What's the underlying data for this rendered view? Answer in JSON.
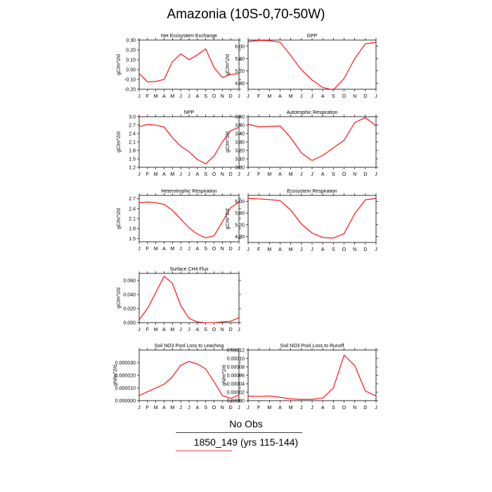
{
  "title": "Amazonia (10S-0,70-50W)",
  "footer": {
    "obs_label": "No Obs",
    "run_label": "1850_149 (yrs 115-144)",
    "obs_rule_color": "#444444",
    "run_rule_color": "#e8433f"
  },
  "line_color": "#ff0000",
  "chart_data": [
    {
      "type": "line",
      "title": "Net Ecosystem Exchange",
      "ylabel": "gC/m^2/d",
      "categories": [
        "J",
        "F",
        "M",
        "A",
        "M",
        "J",
        "J",
        "A",
        "S",
        "O",
        "N",
        "D",
        "J"
      ],
      "ylim": [
        -0.2,
        0.3
      ],
      "yticks": [
        -0.2,
        -0.1,
        0.0,
        0.1,
        0.2,
        0.3
      ],
      "ytick_labels": [
        "-0.20",
        "-0.10",
        "0.00",
        "0.10",
        "0.20",
        "0.30"
      ],
      "values": [
        -0.04,
        -0.125,
        -0.12,
        -0.1,
        0.08,
        0.16,
        0.1,
        0.15,
        0.21,
        0.02,
        -0.08,
        -0.05,
        -0.04
      ]
    },
    {
      "type": "line",
      "title": "GPP",
      "ylabel": "gC/m^2/d",
      "categories": [
        "J",
        "F",
        "M",
        "A",
        "M",
        "J",
        "J",
        "A",
        "S",
        "O",
        "N",
        "D",
        "J"
      ],
      "ylim": [
        4.6,
        6.2
      ],
      "yticks": [
        4.8,
        5.2,
        5.6,
        6.0
      ],
      "ytick_labels": [
        "4.80",
        "5.20",
        "5.60",
        "6.00"
      ],
      "values": [
        6.15,
        6.19,
        6.18,
        6.13,
        5.7,
        5.23,
        4.9,
        4.66,
        4.58,
        4.95,
        5.6,
        6.08,
        6.13
      ]
    },
    {
      "type": "line",
      "title": "NPP",
      "ylabel": "gC/m^2/d",
      "categories": [
        "J",
        "F",
        "M",
        "A",
        "M",
        "J",
        "J",
        "A",
        "S",
        "O",
        "N",
        "D",
        "J"
      ],
      "ylim": [
        1.2,
        3.0
      ],
      "yticks": [
        1.2,
        1.5,
        1.8,
        2.1,
        2.4,
        2.7,
        3.0
      ],
      "ytick_labels": [
        "1.2",
        "1.5",
        "1.8",
        "2.1",
        "2.4",
        "2.7",
        "3.0"
      ],
      "values": [
        2.65,
        2.72,
        2.7,
        2.63,
        2.25,
        1.95,
        1.75,
        1.48,
        1.32,
        1.6,
        2.1,
        2.5,
        2.62
      ]
    },
    {
      "type": "line",
      "title": "Autotrophic Respiration",
      "ylabel": "gC/m^2/d",
      "categories": [
        "J",
        "F",
        "M",
        "A",
        "M",
        "J",
        "J",
        "A",
        "S",
        "O",
        "N",
        "D",
        "J"
      ],
      "ylim": [
        3.0,
        3.6
      ],
      "yticks": [
        3.0,
        3.1,
        3.2,
        3.3,
        3.4,
        3.5,
        3.6
      ],
      "ytick_labels": [
        "3.00",
        "3.10",
        "3.20",
        "3.30",
        "3.40",
        "3.50",
        "3.60"
      ],
      "values": [
        3.51,
        3.48,
        3.485,
        3.49,
        3.35,
        3.17,
        3.08,
        3.14,
        3.23,
        3.32,
        3.53,
        3.59,
        3.49
      ]
    },
    {
      "type": "line",
      "title": "Heterotrophic Respiration",
      "ylabel": "gC/m^2/d",
      "categories": [
        "J",
        "F",
        "M",
        "A",
        "M",
        "J",
        "J",
        "A",
        "S",
        "O",
        "N",
        "D",
        "J"
      ],
      "ylim": [
        1.4,
        2.8
      ],
      "yticks": [
        1.5,
        1.8,
        2.1,
        2.4,
        2.7
      ],
      "ytick_labels": [
        "1.5",
        "1.8",
        "2.1",
        "2.4",
        "2.7"
      ],
      "values": [
        2.58,
        2.6,
        2.58,
        2.53,
        2.35,
        2.08,
        1.82,
        1.63,
        1.52,
        1.58,
        2.0,
        2.43,
        2.6
      ]
    },
    {
      "type": "line",
      "title": "Ecosystem Respiration",
      "ylabel": "gC/m^2/d",
      "categories": [
        "J",
        "F",
        "M",
        "A",
        "M",
        "J",
        "J",
        "A",
        "S",
        "O",
        "N",
        "D",
        "J"
      ],
      "ylim": [
        4.6,
        6.2
      ],
      "yticks": [
        4.8,
        5.2,
        5.6,
        6.0
      ],
      "ytick_labels": [
        "4.80",
        "5.20",
        "5.60",
        "6.00"
      ],
      "values": [
        6.1,
        6.08,
        6.06,
        6.02,
        5.7,
        5.23,
        4.92,
        4.77,
        4.75,
        4.9,
        5.58,
        6.05,
        6.1
      ]
    },
    {
      "type": "line",
      "title": "Surface CH4 Flux",
      "ylabel": "gC/m^2/d",
      "categories": [
        "J",
        "F",
        "M",
        "A",
        "M",
        "J",
        "J",
        "A",
        "S",
        "O",
        "N",
        "D",
        "J"
      ],
      "ylim": [
        0.0,
        0.07
      ],
      "yticks": [
        0.0,
        0.02,
        0.04,
        0.06
      ],
      "ytick_labels": [
        "0.000",
        "0.020",
        "0.040",
        "0.060"
      ],
      "values": [
        0.004,
        0.02,
        0.043,
        0.066,
        0.056,
        0.024,
        0.006,
        0.001,
        0.0,
        0.0,
        0.001,
        0.002,
        0.007
      ]
    },
    {
      "type": "line",
      "title": "Soil NO3 Pool Loss to Leaching",
      "ylabel": "gN/m^2/d",
      "categories": [
        "J",
        "F",
        "M",
        "A",
        "M",
        "J",
        "J",
        "A",
        "S",
        "O",
        "N",
        "D",
        "J"
      ],
      "ylim": [
        0.0,
        4e-05
      ],
      "yticks": [
        0.0,
        1e-05,
        2e-05,
        3e-05
      ],
      "ytick_labels": [
        "0.000000",
        "0.000010",
        "0.000020",
        "0.000030"
      ],
      "values": [
        4e-06,
        7e-06,
        1e-05,
        1.3e-05,
        1.9e-05,
        2.8e-05,
        3.1e-05,
        2.9e-05,
        2.5e-05,
        1.5e-05,
        4e-06,
        1.8e-06,
        4.5e-06
      ]
    },
    {
      "type": "line",
      "title": "Soil NO3 Pool Loss to Runoff",
      "ylabel": "gN/m^2/d",
      "categories": [
        "J",
        "F",
        "M",
        "A",
        "M",
        "J",
        "J",
        "A",
        "S",
        "O",
        "N",
        "D",
        "J"
      ],
      "ylim": [
        0.0,
        0.00012
      ],
      "yticks": [
        0.0,
        2e-05,
        4e-05,
        6e-05,
        8e-05,
        0.0001,
        0.00012
      ],
      "ytick_labels": [
        "0.00000",
        "0.00002",
        "0.00004",
        "0.00006",
        "0.00008",
        "0.00010",
        "0.00012"
      ],
      "values": [
        1.1e-05,
        1e-05,
        1.1e-05,
        8e-06,
        4e-06,
        3e-06,
        3e-06,
        6e-06,
        3e-05,
        0.000108,
        8.3e-05,
        2.3e-05,
        1.1e-05
      ]
    }
  ]
}
